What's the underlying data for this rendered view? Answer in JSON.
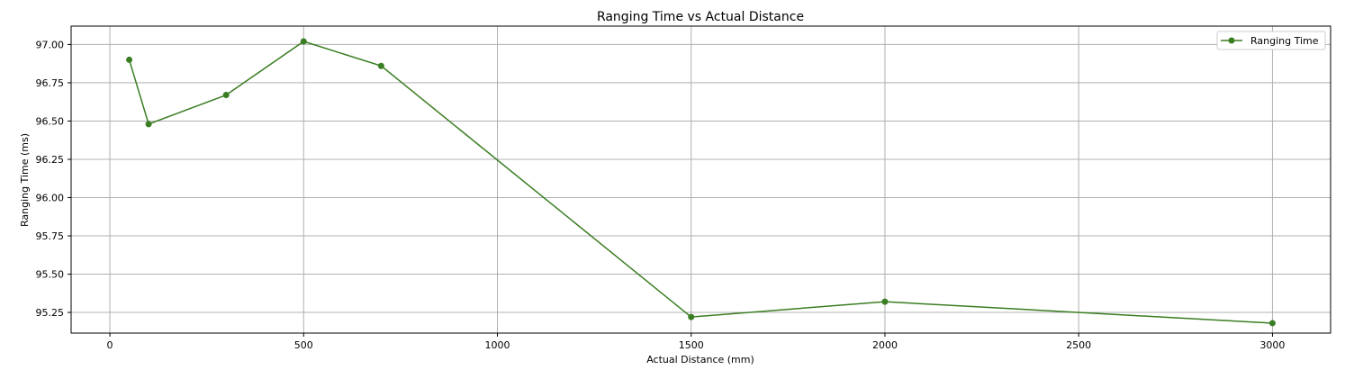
{
  "chart_data": {
    "type": "line",
    "title": "Ranging Time vs Actual Distance",
    "xlabel": "Actual Distance (mm)",
    "ylabel": "Ranging Time (ms)",
    "xlim": [
      -100,
      3150
    ],
    "ylim": [
      95.115,
      97.12
    ],
    "xticks": [
      0,
      500,
      1000,
      1500,
      2000,
      2500,
      3000
    ],
    "xtick_labels": [
      "0",
      "500",
      "1000",
      "1500",
      "2000",
      "2500",
      "3000"
    ],
    "yticks": [
      95.25,
      95.5,
      95.75,
      96.0,
      96.25,
      96.5,
      96.75,
      97.0
    ],
    "ytick_labels": [
      "95.25",
      "95.50",
      "95.75",
      "96.00",
      "96.25",
      "96.50",
      "96.75",
      "97.00"
    ],
    "grid": true,
    "legend_position": "top-right",
    "series": [
      {
        "name": "Ranging Time",
        "color": "#3a7d22",
        "marker": "circle",
        "x": [
          50,
          100,
          300,
          500,
          700,
          1500,
          2000,
          3000
        ],
        "y": [
          96.9,
          96.48,
          96.67,
          97.02,
          96.86,
          95.22,
          95.32,
          95.18
        ]
      }
    ]
  }
}
